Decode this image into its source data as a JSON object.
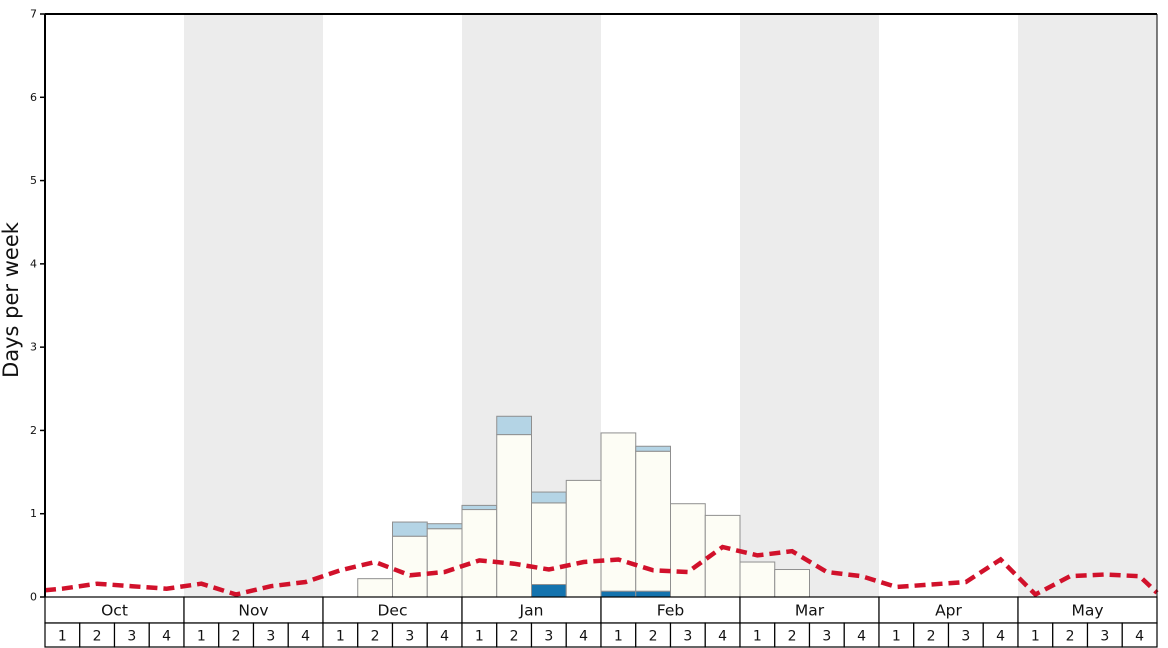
{
  "chart_data": {
    "type": "bar",
    "title": "",
    "ylabel": "Days per week",
    "ylim": [
      0,
      7
    ],
    "yticks": [
      "0",
      "1",
      "2",
      "3",
      "4",
      "5",
      "6",
      "7"
    ],
    "months": [
      "Oct",
      "Nov",
      "Dec",
      "Jan",
      "Feb",
      "Mar",
      "Apr",
      "May"
    ],
    "week_labels": [
      "1",
      "2",
      "3",
      "4"
    ],
    "shaded_month_indexes": [
      1,
      3,
      5,
      7
    ],
    "categories": [
      "Oct-1",
      "Oct-2",
      "Oct-3",
      "Oct-4",
      "Nov-1",
      "Nov-2",
      "Nov-3",
      "Nov-4",
      "Dec-1",
      "Dec-2",
      "Dec-3",
      "Dec-4",
      "Jan-1",
      "Jan-2",
      "Jan-3",
      "Jan-4",
      "Feb-1",
      "Feb-2",
      "Feb-3",
      "Feb-4",
      "Mar-1",
      "Mar-2",
      "Mar-3",
      "Mar-4",
      "Apr-1",
      "Apr-2",
      "Apr-3",
      "Apr-4",
      "May-1",
      "May-2",
      "May-3",
      "May-4"
    ],
    "series": [
      {
        "name": "dark-blue-segment",
        "color": "#1473ae",
        "values": [
          0,
          0,
          0,
          0,
          0,
          0,
          0,
          0,
          0,
          0,
          0,
          0,
          0,
          0,
          0.15,
          0,
          0.07,
          0.07,
          0,
          0,
          0,
          0,
          0,
          0,
          0,
          0,
          0,
          0,
          0,
          0,
          0,
          0
        ]
      },
      {
        "name": "white-segment",
        "color": "#fdfdf5",
        "values": [
          0,
          0,
          0,
          0,
          0,
          0,
          0,
          0,
          0,
          0.22,
          0.73,
          0.82,
          1.05,
          1.95,
          0.98,
          1.4,
          1.9,
          1.68,
          1.12,
          0.98,
          0.42,
          0.33,
          0,
          0,
          0,
          0,
          0,
          0,
          0,
          0,
          0,
          0
        ]
      },
      {
        "name": "light-blue-segment",
        "color": "#b4d4e5",
        "values": [
          0,
          0,
          0,
          0,
          0,
          0,
          0,
          0,
          0,
          0,
          0.17,
          0.06,
          0.05,
          0.22,
          0.13,
          0,
          0,
          0.06,
          0,
          0,
          0,
          0,
          0,
          0,
          0,
          0,
          0,
          0,
          0,
          0,
          0,
          0
        ]
      }
    ],
    "line": {
      "name": "average-line",
      "color": "#d1112b",
      "style": "dashed",
      "edge_start": 0.08,
      "edge_end": 0.05,
      "values": [
        0.1,
        0.16,
        0.13,
        0.1,
        0.16,
        0.03,
        0.13,
        0.18,
        0.32,
        0.42,
        0.26,
        0.3,
        0.44,
        0.4,
        0.33,
        0.42,
        0.45,
        0.32,
        0.3,
        0.6,
        0.5,
        0.55,
        0.3,
        0.25,
        0.12,
        0.15,
        0.18,
        0.45,
        0.03,
        0.25,
        0.27,
        0.25
      ]
    },
    "colors": {
      "band": "#ececec",
      "bar_outline": "#8f8f8f",
      "axis": "#000000",
      "table_fill": "#ffffff"
    },
    "legend": "none",
    "grid": "off"
  }
}
